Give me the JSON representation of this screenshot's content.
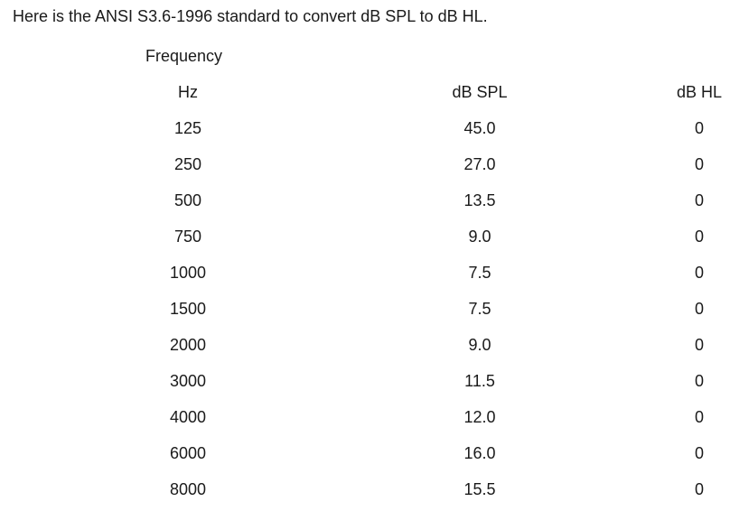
{
  "intro_text": "Here is the ANSI S3.6-1996 standard to convert dB SPL to dB HL.",
  "table": {
    "caption": "Frequency",
    "headers": {
      "hz": "Hz",
      "spl": "dB SPL",
      "hl": "dB HL"
    },
    "rows": [
      {
        "hz": "125",
        "spl": "45.0",
        "hl": "0"
      },
      {
        "hz": "250",
        "spl": "27.0",
        "hl": "0"
      },
      {
        "hz": "500",
        "spl": "13.5",
        "hl": "0"
      },
      {
        "hz": "750",
        "spl": "9.0",
        "hl": "0"
      },
      {
        "hz": "1000",
        "spl": "7.5",
        "hl": "0"
      },
      {
        "hz": "1500",
        "spl": "7.5",
        "hl": "0"
      },
      {
        "hz": "2000",
        "spl": "9.0",
        "hl": "0"
      },
      {
        "hz": "3000",
        "spl": "11.5",
        "hl": "0"
      },
      {
        "hz": "4000",
        "spl": "12.0",
        "hl": "0"
      },
      {
        "hz": "6000",
        "spl": "16.0",
        "hl": "0"
      },
      {
        "hz": "8000",
        "spl": "15.5",
        "hl": "0"
      }
    ]
  }
}
